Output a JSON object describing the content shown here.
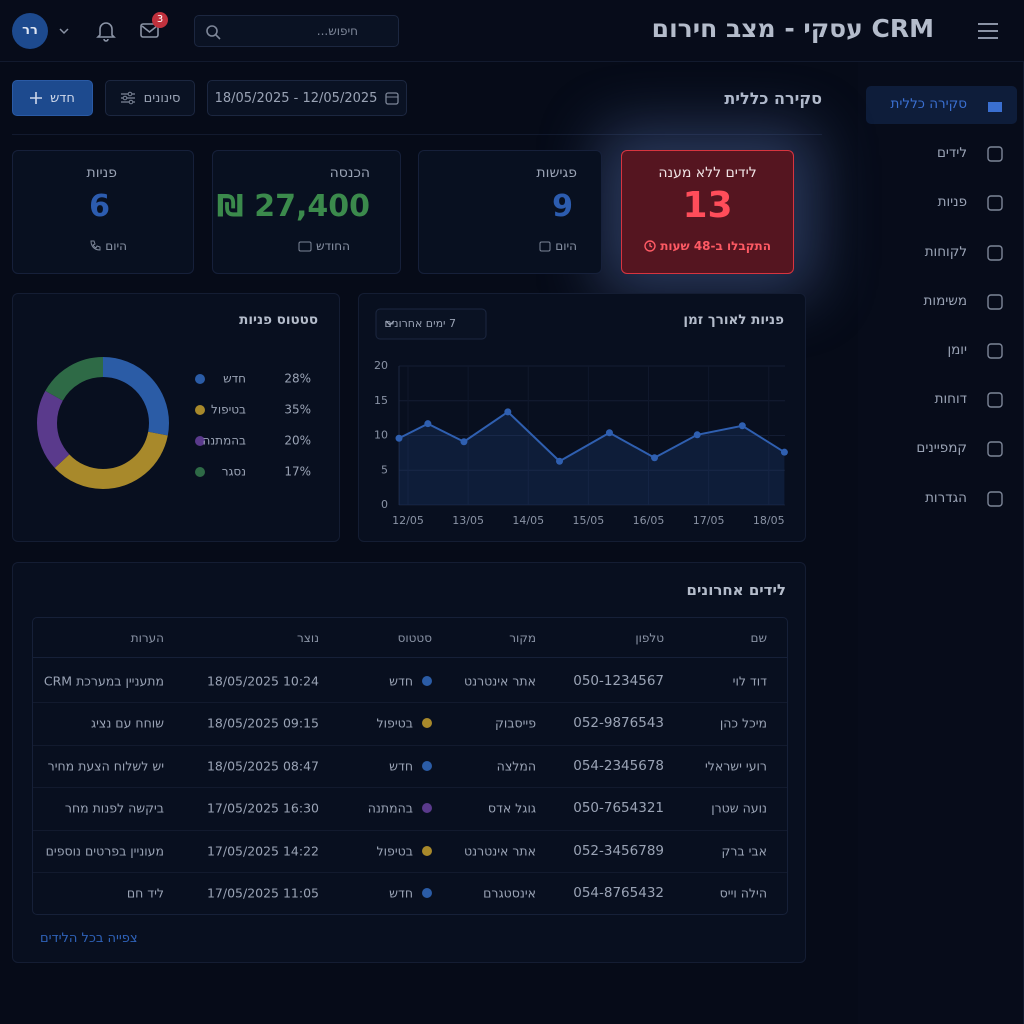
{
  "header": {
    "title": "CRM עסקי - מצב חירום",
    "search_placeholder": "חיפוש...",
    "mail_badge": "3",
    "avatar": "רר"
  },
  "sidebar": {
    "items": [
      "סקירה כללית",
      "לידים",
      "פניות",
      "לקוחות",
      "משימות",
      "יומן",
      "דוחות",
      "קמפיינים",
      "הגדרות"
    ],
    "active": 0
  },
  "overview": {
    "heading": "סקירה כללית",
    "date_range": "18/05/2025 - 12/05/2025",
    "filters_button": "סינונים",
    "new_button": "חדש"
  },
  "kpis": [
    {
      "title": "לידים ללא מענה",
      "value": 13,
      "note": "התקבלו ב-48 שעות"
    },
    {
      "title": "פגישות",
      "value": 9,
      "note": "היום"
    },
    {
      "title": "הכנסה",
      "value": "27,400 ₪",
      "note": "החודש"
    },
    {
      "title": "פניות",
      "value": 6,
      "note": "היום"
    }
  ],
  "line_chart": {
    "type": "line",
    "title": "פניות לאורך זמן",
    "range_select": "7 ימים אחרונים",
    "x": [
      -0.15,
      0.33,
      0.93,
      1.66,
      2.52,
      3.35,
      4.1,
      4.81,
      5.56,
      6.26
    ],
    "values": [
      9.6,
      11.7,
      9.1,
      13.4,
      6.3,
      10.4,
      6.8,
      10.1,
      11.4,
      7.6
    ],
    "color": "#2f5fb0",
    "xlim": [
      -0.15,
      6.27
    ],
    "xticks": [
      {
        "value": 0,
        "label": "12/05"
      },
      {
        "value": 1,
        "label": "13/05"
      },
      {
        "value": 2,
        "label": "14/05"
      },
      {
        "value": 3,
        "label": "15/05"
      },
      {
        "value": 4,
        "label": "16/05"
      },
      {
        "value": 5,
        "label": "17/05"
      },
      {
        "value": 6,
        "label": "18/05"
      }
    ],
    "ylim": [
      0,
      20
    ],
    "yticks": [
      0,
      5,
      10,
      15,
      20
    ],
    "grid": true
  },
  "donut_chart": {
    "type": "pie",
    "title": "סטטוס פניות",
    "categories": [
      "חדש",
      "בטיפול",
      "בהמתנה",
      "נסגר"
    ],
    "values": [
      28,
      35,
      20,
      17
    ],
    "value_labels": [
      "28%",
      "35%",
      "20%",
      "17%"
    ],
    "colors": [
      "#2b5ca6",
      "#a8892b",
      "#5a3a8c",
      "#2e6a46"
    ]
  },
  "recent_leads": {
    "title": "לידים אחרונים",
    "columns": [
      "שם",
      "טלפון",
      "מקור",
      "סטטוס",
      "נוצר",
      "הערות"
    ],
    "rows": [
      [
        "דוד לוי",
        "050-1234567",
        "אתר אינטרנט",
        "חדש",
        "18/05/2025 10:24",
        "מתעניין במערכת CRM"
      ],
      [
        "מיכל כהן",
        "052-9876543",
        "פייסבוק",
        "בטיפול",
        "18/05/2025 09:15",
        "שוחח עם נציג"
      ],
      [
        "רועי ישראלי",
        "054-2345678",
        "המלצה",
        "חדש",
        "18/05/2025 08:47",
        "יש לשלוח הצעת מחיר"
      ],
      [
        "נועה שטרן",
        "050-7654321",
        "גוגל אדס",
        "בהמתנה",
        "17/05/2025 16:30",
        "ביקשה לפנות מחר"
      ],
      [
        "אבי ברק",
        "052-3456789",
        "אתר אינטרנט",
        "בטיפול",
        "17/05/2025 14:22",
        "מעוניין בפרטים נוספים"
      ],
      [
        "הילה וייס",
        "054-8765432",
        "אינסטגרם",
        "חדש",
        "17/05/2025 11:05",
        "ליד חם"
      ]
    ],
    "footer_link": "צפייה בכל הלידים"
  }
}
